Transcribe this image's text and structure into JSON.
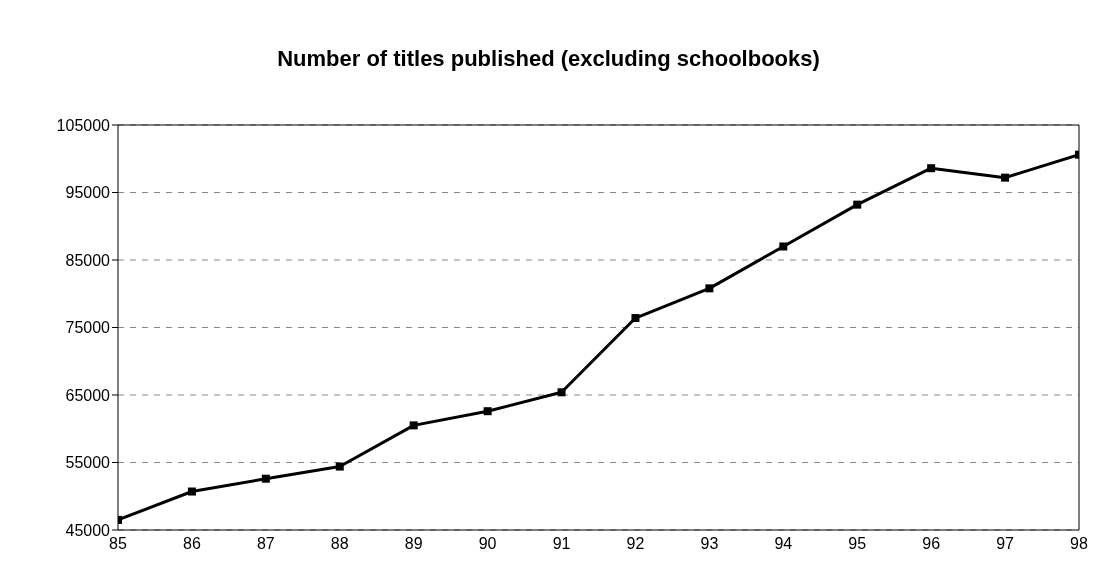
{
  "chart_data": {
    "type": "line",
    "title": "Number of titles published (excluding schoolbooks)",
    "categories": [
      "85",
      "86",
      "87",
      "88",
      "89",
      "90",
      "91",
      "92",
      "93",
      "94",
      "95",
      "96",
      "97",
      "98"
    ],
    "series": [
      {
        "color": "#000000",
        "values": [
          46500,
          50700,
          52600,
          54400,
          60500,
          62600,
          65400,
          76400,
          80800,
          87000,
          93200,
          98600,
          97200,
          100600
        ]
      }
    ],
    "ylim": [
      45000,
      105000
    ],
    "yticks": [
      45000,
      55000,
      65000,
      75000,
      85000,
      95000,
      105000
    ],
    "grid": "y",
    "marker": "square",
    "line_style": "solid"
  }
}
